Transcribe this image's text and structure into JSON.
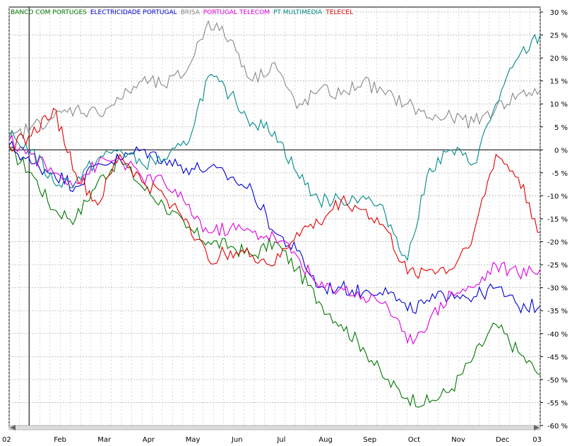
{
  "chart_data": {
    "type": "line",
    "title": "",
    "xlabel": "",
    "ylabel": "",
    "ylim": [
      -60,
      30
    ],
    "y_ticks": [
      30,
      25,
      20,
      15,
      10,
      5,
      0,
      -5,
      -10,
      -15,
      -20,
      -25,
      -30,
      -35,
      -40,
      -45,
      -50,
      -55,
      -60
    ],
    "y_tick_labels": [
      "30 %",
      "25 %",
      "20 %",
      "15 %",
      "10 %",
      "5 %",
      "0 %",
      "-5 %",
      "-10 %",
      "-15 %",
      "-20 %",
      "-25 %",
      "-30 %",
      "-35 %",
      "-40 %",
      "-45 %",
      "-50 %",
      "-55 %",
      "-60 %"
    ],
    "x_labels": [
      "02",
      "Feb",
      "Mar",
      "Apr",
      "May",
      "Jun",
      "Jul",
      "Aug",
      "Sep",
      "Oct",
      "Nov",
      "Dec",
      "03"
    ],
    "x_label_months": [
      0,
      1.15,
      2.15,
      3.15,
      4.15,
      5.15,
      6.15,
      7.15,
      8.15,
      9.15,
      10.15,
      11.15,
      12
    ],
    "x": [
      0,
      0.5,
      1,
      1.5,
      2,
      2.5,
      3,
      3.5,
      4,
      4.5,
      5,
      5.5,
      6,
      6.5,
      7,
      7.5,
      8,
      8.5,
      9,
      9.5,
      10,
      10.5,
      11,
      11.5,
      12
    ],
    "legend_position": "top-left",
    "series": [
      {
        "name": "BANCO COM PORTUGES",
        "color": "#007700",
        "values": [
          0,
          -5,
          -13,
          -15,
          -7,
          -2,
          -8,
          -12,
          -17,
          -20,
          -21,
          -23,
          -20,
          -26,
          -33,
          -38,
          -43,
          -50,
          -54,
          -55,
          -52,
          -45,
          -38,
          -44,
          -49
        ]
      },
      {
        "name": "ELECTRICIDADE PORTUGAL",
        "color": "#0000cc",
        "values": [
          1,
          -3,
          -5,
          -8,
          -3,
          -2,
          0,
          -2,
          -4,
          -4,
          -6,
          -9,
          -18,
          -22,
          -30,
          -30,
          -31,
          -30,
          -35,
          -33,
          -31,
          -32,
          -30,
          -34,
          -34
        ]
      },
      {
        "name": "BRISA",
        "color": "#888888",
        "values": [
          2,
          5,
          7,
          9,
          8,
          11,
          15,
          14,
          17,
          28,
          24,
          15,
          19,
          9,
          13,
          12,
          15,
          12,
          10,
          7,
          7,
          6,
          9,
          12,
          13
        ]
      },
      {
        "name": "PORTUGAL TELECOM",
        "color": "#dd00dd",
        "values": [
          2,
          -1,
          -5,
          -7,
          -3,
          -2,
          -6,
          -7,
          -12,
          -18,
          -17,
          -18,
          -19,
          -23,
          -30,
          -30,
          -32,
          -33,
          -42,
          -37,
          -31,
          -30,
          -25,
          -27,
          -26
        ]
      },
      {
        "name": "PT MULTIMEDIA",
        "color": "#008888",
        "values": [
          3,
          0,
          -7,
          -7,
          -2,
          0,
          -3,
          -2,
          1,
          16,
          12,
          6,
          4,
          -5,
          -11,
          -11,
          -10,
          -14,
          -24,
          -4,
          0,
          -3,
          10,
          20,
          25
        ]
      },
      {
        "name": "TELECEL",
        "color": "#dd0000",
        "values": [
          1,
          3,
          9,
          -5,
          -12,
          -1,
          -7,
          -10,
          -15,
          -24,
          -22,
          -23,
          -25,
          -18,
          -16,
          -11,
          -13,
          -17,
          -27,
          -26,
          -26,
          -18,
          -1,
          -6,
          -18
        ]
      }
    ]
  }
}
